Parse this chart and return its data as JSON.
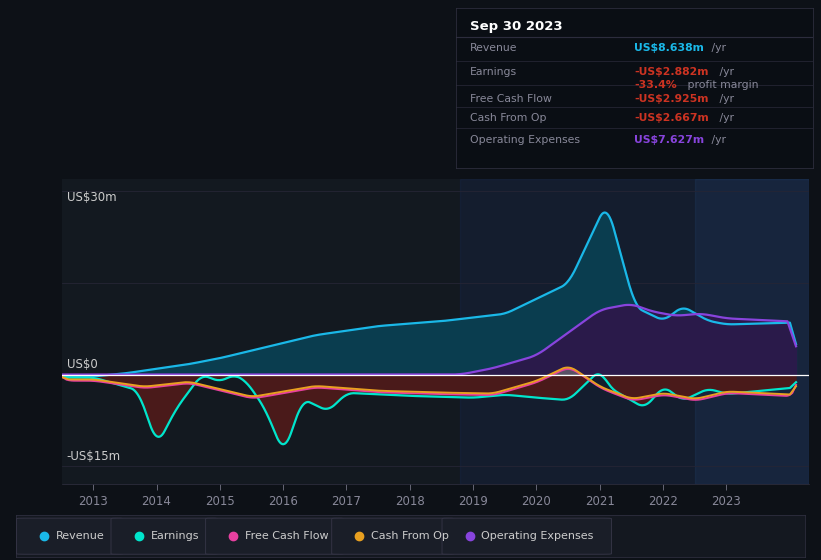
{
  "bg_color": "#0d1117",
  "plot_bg_color": "#131920",
  "ylim": [
    -18,
    32
  ],
  "yticks": [
    -15,
    0,
    30
  ],
  "xticks": [
    2013,
    2014,
    2015,
    2016,
    2017,
    2018,
    2019,
    2020,
    2021,
    2022,
    2023
  ],
  "colors": {
    "revenue": "#1ab8e8",
    "earnings": "#00e5cc",
    "free_cash_flow": "#e840a0",
    "cash_from_op": "#e8a020",
    "operating_expenses": "#8844dd"
  },
  "legend": [
    {
      "label": "Revenue",
      "color": "#1ab8e8"
    },
    {
      "label": "Earnings",
      "color": "#00e5cc"
    },
    {
      "label": "Free Cash Flow",
      "color": "#e840a0"
    },
    {
      "label": "Cash From Op",
      "color": "#e8a020"
    },
    {
      "label": "Operating Expenses",
      "color": "#8844dd"
    }
  ],
  "info_box": {
    "date": "Sep 30 2023",
    "rows": [
      {
        "label": "Revenue",
        "value": "US$8.638m",
        "value_color": "#1ab8e8",
        "suffix": " /yr"
      },
      {
        "label": "Earnings",
        "value": "-US$2.882m",
        "value_color": "#cc3322",
        "suffix": " /yr"
      },
      {
        "label": "",
        "value": "-33.4%",
        "value_color": "#cc3322",
        "suffix": " profit margin"
      },
      {
        "label": "Free Cash Flow",
        "value": "-US$2.925m",
        "value_color": "#cc3322",
        "suffix": " /yr"
      },
      {
        "label": "Cash From Op",
        "value": "-US$2.667m",
        "value_color": "#cc3322",
        "suffix": " /yr"
      },
      {
        "label": "Operating Expenses",
        "value": "US$7.627m",
        "value_color": "#8844dd",
        "suffix": " /yr"
      }
    ]
  }
}
